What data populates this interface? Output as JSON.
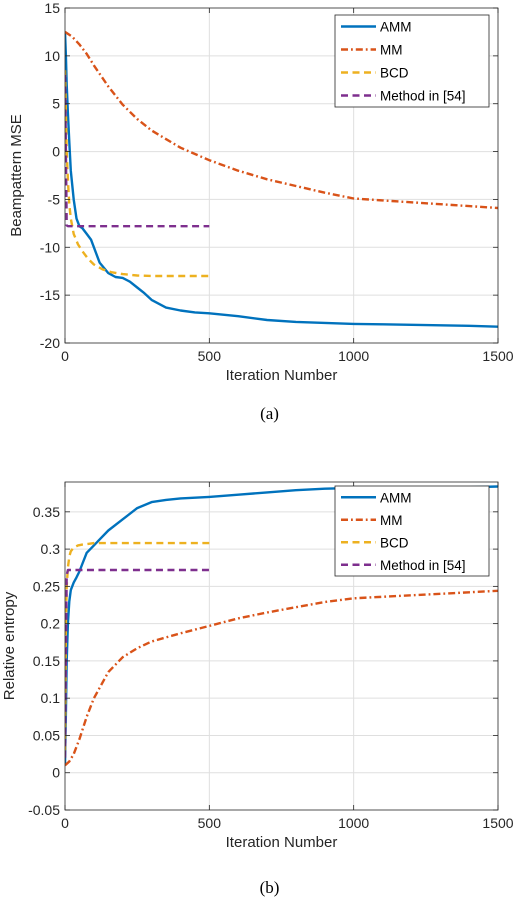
{
  "chart_data": [
    {
      "type": "line",
      "caption": "(a)",
      "xlabel": "Iteration Number",
      "ylabel": "Beampattern MSE",
      "xlim": [
        0,
        1500
      ],
      "ylim": [
        -20,
        15
      ],
      "xticks": [
        0,
        500,
        1000,
        1500
      ],
      "yticks": [
        -20,
        -15,
        -10,
        -5,
        0,
        5,
        10,
        15
      ],
      "xtick_labels": [
        "0",
        "500",
        "1000",
        "1500"
      ],
      "ytick_labels": [
        "-20",
        "-15",
        "-10",
        "-5",
        "0",
        "5",
        "10",
        "15"
      ],
      "grid": true,
      "legend_position": "top-right",
      "series": [
        {
          "name": "AMM",
          "color": "#0072BD",
          "style": "solid",
          "x": [
            0,
            3,
            6,
            10,
            15,
            20,
            30,
            40,
            50,
            60,
            75,
            90,
            100,
            120,
            150,
            175,
            200,
            225,
            250,
            275,
            300,
            350,
            400,
            450,
            500,
            600,
            700,
            800,
            900,
            1000,
            1100,
            1200,
            1300,
            1400,
            1500
          ],
          "y": [
            12.5,
            10,
            7,
            4,
            1,
            -2,
            -5,
            -7,
            -7.8,
            -8,
            -8.6,
            -9.2,
            -10,
            -11.6,
            -12.7,
            -13.1,
            -13.2,
            -13.6,
            -14.2,
            -14.8,
            -15.5,
            -16.3,
            -16.6,
            -16.8,
            -16.9,
            -17.2,
            -17.6,
            -17.8,
            -17.9,
            -18.0,
            -18.05,
            -18.1,
            -18.15,
            -18.2,
            -18.3
          ]
        },
        {
          "name": "MM",
          "color": "#D95319",
          "style": "dashdot",
          "x": [
            0,
            25,
            50,
            75,
            100,
            150,
            200,
            250,
            300,
            400,
            500,
            600,
            700,
            800,
            900,
            1000,
            1100,
            1200,
            1300,
            1400,
            1500
          ],
          "y": [
            12.5,
            12,
            11.2,
            10.2,
            9,
            6.8,
            4.9,
            3.4,
            2.2,
            0.4,
            -0.9,
            -2,
            -2.9,
            -3.6,
            -4.3,
            -4.9,
            -5.1,
            -5.3,
            -5.5,
            -5.7,
            -5.9
          ]
        },
        {
          "name": "BCD",
          "color": "#EDB120",
          "style": "dashed",
          "x": [
            0,
            3,
            6,
            10,
            15,
            20,
            30,
            45,
            60,
            80,
            100,
            130,
            160,
            200,
            250,
            300,
            400,
            500
          ],
          "y": [
            8.5,
            4,
            0,
            -3,
            -5.5,
            -7,
            -8.6,
            -9.7,
            -10.4,
            -11.2,
            -11.8,
            -12.3,
            -12.6,
            -12.8,
            -12.95,
            -13,
            -13,
            -13
          ]
        },
        {
          "name": "Method in [54]",
          "color": "#7E2F8E",
          "style": "dashed",
          "x": [
            0,
            2,
            4,
            6,
            10,
            20,
            50,
            100,
            200,
            300,
            400,
            500
          ],
          "y": [
            8,
            3,
            -3,
            -7.7,
            -7.8,
            -7.8,
            -7.8,
            -7.8,
            -7.8,
            -7.8,
            -7.8,
            -7.8
          ]
        }
      ]
    },
    {
      "type": "line",
      "caption": "(b)",
      "xlabel": "Iteration Number",
      "ylabel": "Relative entropy",
      "xlim": [
        0,
        1500
      ],
      "ylim": [
        -0.05,
        0.39
      ],
      "xticks": [
        0,
        500,
        1000,
        1500
      ],
      "yticks": [
        -0.05,
        0,
        0.05,
        0.1,
        0.15,
        0.2,
        0.25,
        0.3,
        0.35
      ],
      "xtick_labels": [
        "0",
        "500",
        "1000",
        "1500"
      ],
      "ytick_labels": [
        "-0.05",
        "0",
        "0.05",
        "0.1",
        "0.15",
        "0.2",
        "0.25",
        "0.3",
        "0.35"
      ],
      "grid": true,
      "legend_position": "top-right",
      "series": [
        {
          "name": "AMM",
          "color": "#0072BD",
          "style": "solid",
          "x": [
            0,
            3,
            6,
            10,
            15,
            20,
            30,
            40,
            50,
            60,
            75,
            100,
            125,
            150,
            200,
            250,
            300,
            350,
            400,
            450,
            500,
            600,
            700,
            800,
            900,
            1000,
            1100,
            1200,
            1300,
            1400,
            1500
          ],
          "y": [
            0.01,
            0.08,
            0.15,
            0.2,
            0.23,
            0.245,
            0.255,
            0.262,
            0.27,
            0.28,
            0.295,
            0.305,
            0.315,
            0.325,
            0.34,
            0.355,
            0.363,
            0.366,
            0.368,
            0.369,
            0.37,
            0.373,
            0.376,
            0.379,
            0.381,
            0.382,
            0.382,
            0.382,
            0.383,
            0.383,
            0.384
          ]
        },
        {
          "name": "MM",
          "color": "#D95319",
          "style": "dashdot",
          "x": [
            0,
            15,
            30,
            50,
            75,
            100,
            150,
            200,
            250,
            300,
            400,
            500,
            600,
            700,
            800,
            900,
            1000,
            1100,
            1200,
            1300,
            1400,
            1500
          ],
          "y": [
            0.01,
            0.015,
            0.025,
            0.045,
            0.075,
            0.1,
            0.135,
            0.155,
            0.167,
            0.176,
            0.187,
            0.197,
            0.207,
            0.215,
            0.222,
            0.229,
            0.234,
            0.236,
            0.238,
            0.24,
            0.242,
            0.244
          ]
        },
        {
          "name": "BCD",
          "color": "#EDB120",
          "style": "dashed",
          "x": [
            0,
            3,
            6,
            10,
            15,
            20,
            30,
            45,
            60,
            80,
            100,
            150,
            200,
            300,
            400,
            500
          ],
          "y": [
            0.03,
            0.2,
            0.25,
            0.275,
            0.29,
            0.297,
            0.302,
            0.305,
            0.306,
            0.307,
            0.308,
            0.308,
            0.308,
            0.308,
            0.308,
            0.308
          ]
        },
        {
          "name": "Method in [54]",
          "color": "#7E2F8E",
          "style": "dashed",
          "x": [
            0,
            2,
            4,
            6,
            10,
            20,
            50,
            100,
            200,
            300,
            400,
            500
          ],
          "y": [
            0.02,
            0.12,
            0.2,
            0.265,
            0.272,
            0.272,
            0.272,
            0.272,
            0.272,
            0.272,
            0.272,
            0.272
          ]
        }
      ]
    }
  ]
}
